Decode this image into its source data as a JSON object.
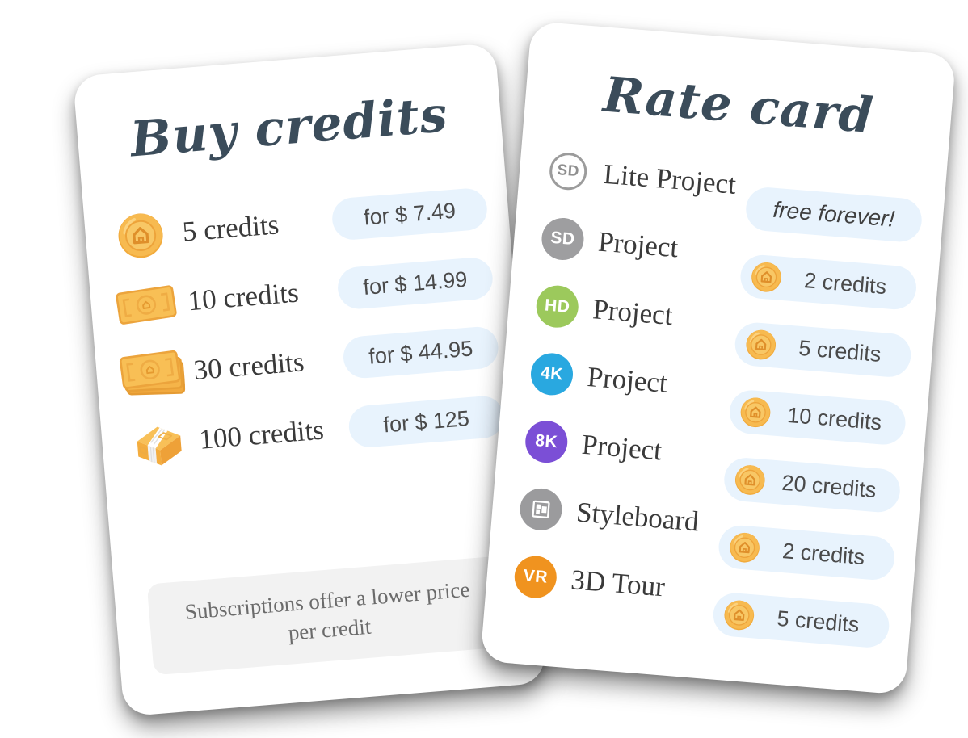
{
  "buy_card": {
    "title": "Buy credits",
    "rows": [
      {
        "icon": "coin-icon",
        "label": "5 credits",
        "price": "for $ 7.49"
      },
      {
        "icon": "banknote-icon",
        "label": "10 credits",
        "price": "for $ 14.99"
      },
      {
        "icon": "banknote-stack-icon",
        "label": "30 credits",
        "price": "for $ 44.95"
      },
      {
        "icon": "cash-bundle-icon",
        "label": "100 credits",
        "price": "for  $ 125"
      }
    ],
    "note": "Subscriptions offer a lower price per credit"
  },
  "rate_card": {
    "title": "Rate card",
    "rows": [
      {
        "badge_text": "SD",
        "badge_name": "sd-lite-badge",
        "badge_style": "outline",
        "badge_color": "#9c9c9c",
        "label": "Lite Project",
        "price": "free forever!",
        "has_coin": false
      },
      {
        "badge_text": "SD",
        "badge_name": "sd-badge",
        "badge_style": "filled",
        "badge_color": "#9e9ea0",
        "label": "Project",
        "price": "2 credits",
        "has_coin": true
      },
      {
        "badge_text": "HD",
        "badge_name": "hd-badge",
        "badge_style": "filled",
        "badge_color": "#9cc95c",
        "label": "Project",
        "price": "5 credits",
        "has_coin": true
      },
      {
        "badge_text": "4K",
        "badge_name": "4k-badge",
        "badge_style": "filled",
        "badge_color": "#29a8e0",
        "label": "Project",
        "price": "10 credits",
        "has_coin": true
      },
      {
        "badge_text": "8K",
        "badge_name": "8k-badge",
        "badge_style": "filled",
        "badge_color": "#7b4fd6",
        "label": "Project",
        "price": "20 credits",
        "has_coin": true
      },
      {
        "badge_text": "",
        "badge_name": "styleboard-badge",
        "badge_style": "icon",
        "badge_color": "#9b9b9d",
        "label": "Styleboard",
        "price": "2 credits",
        "has_coin": true
      },
      {
        "badge_text": "VR",
        "badge_name": "vr-badge",
        "badge_style": "filled",
        "badge_color": "#f0931f",
        "label": "3D Tour",
        "price": "5 credits",
        "has_coin": true
      }
    ]
  },
  "colors": {
    "title": "#3b4c5a",
    "pill_background": "#e8f3fd",
    "pill_text": "#4a4a4a",
    "note_background": "#f2f2f2",
    "note_text": "#6b6b6b",
    "coin_gold": "#f7ba50",
    "coin_glyph": "#df8f2a"
  }
}
